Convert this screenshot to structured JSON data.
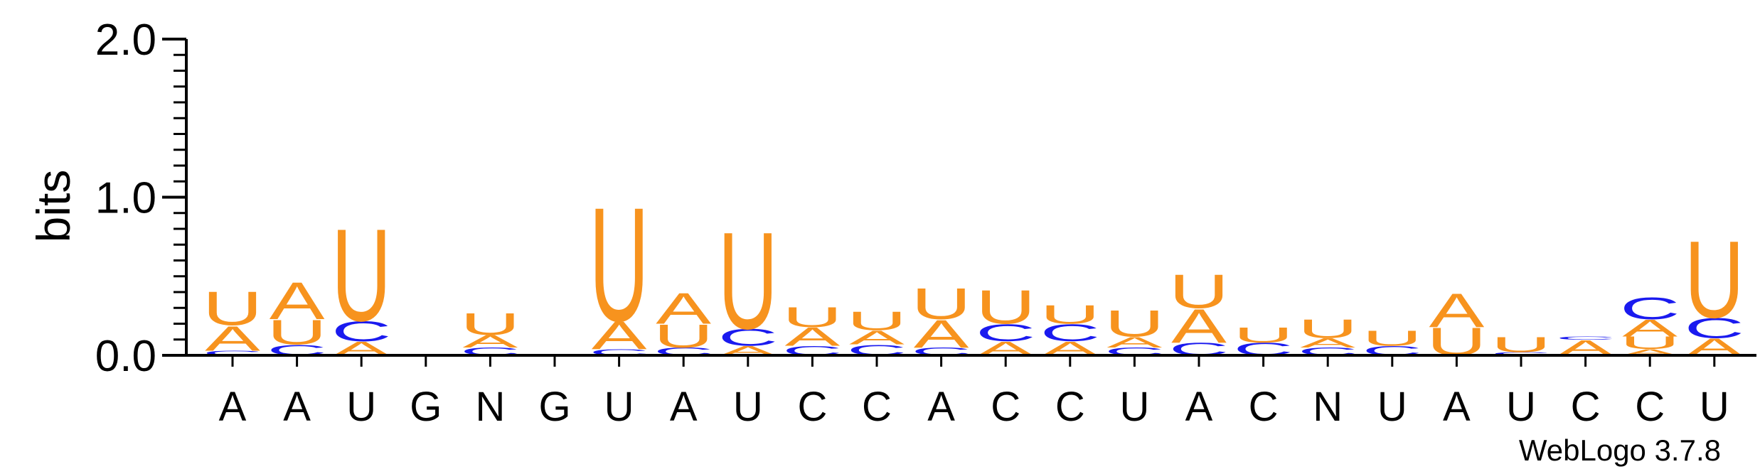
{
  "colors": {
    "A": "#f7931e",
    "U": "#f7931e",
    "C": "#1a1aef",
    "G": "#f7931e"
  },
  "credit": "WebLogo 3.7.8",
  "chart_data": {
    "type": "sequence-logo",
    "ylabel": "bits",
    "ylim": [
      0,
      2.0
    ],
    "yticks": [
      "0.0",
      "1.0",
      "2.0"
    ],
    "positions": [
      {
        "label": "A",
        "stack": [
          [
            "C",
            0.03
          ],
          [
            "A",
            0.16
          ],
          [
            "U",
            0.22
          ]
        ]
      },
      {
        "label": "A",
        "stack": [
          [
            "C",
            0.07
          ],
          [
            "U",
            0.16
          ],
          [
            "A",
            0.24
          ]
        ]
      },
      {
        "label": "U",
        "stack": [
          [
            "A",
            0.09
          ],
          [
            "C",
            0.13
          ],
          [
            "U",
            0.6
          ]
        ]
      },
      {
        "label": "G",
        "stack": []
      },
      {
        "label": "N",
        "stack": [
          [
            "C",
            0.05
          ],
          [
            "A",
            0.08
          ],
          [
            "U",
            0.14
          ]
        ]
      },
      {
        "label": "G",
        "stack": []
      },
      {
        "label": "U",
        "stack": [
          [
            "C",
            0.04
          ],
          [
            "A",
            0.18
          ],
          [
            "U",
            0.74
          ]
        ]
      },
      {
        "label": "A",
        "stack": [
          [
            "C",
            0.05
          ],
          [
            "U",
            0.15
          ],
          [
            "A",
            0.2
          ]
        ]
      },
      {
        "label": "U",
        "stack": [
          [
            "A",
            0.06
          ],
          [
            "C",
            0.11
          ],
          [
            "U",
            0.63
          ]
        ]
      },
      {
        "label": "C",
        "stack": [
          [
            "C",
            0.06
          ],
          [
            "A",
            0.12
          ],
          [
            "U",
            0.13
          ]
        ]
      },
      {
        "label": "C",
        "stack": [
          [
            "C",
            0.07
          ],
          [
            "A",
            0.09
          ],
          [
            "U",
            0.12
          ]
        ]
      },
      {
        "label": "A",
        "stack": [
          [
            "C",
            0.05
          ],
          [
            "A",
            0.18
          ],
          [
            "U",
            0.2
          ]
        ]
      },
      {
        "label": "C",
        "stack": [
          [
            "A",
            0.09
          ],
          [
            "C",
            0.11
          ],
          [
            "U",
            0.22
          ]
        ]
      },
      {
        "label": "C",
        "stack": [
          [
            "A",
            0.09
          ],
          [
            "C",
            0.11
          ],
          [
            "U",
            0.12
          ]
        ]
      },
      {
        "label": "U",
        "stack": [
          [
            "C",
            0.05
          ],
          [
            "A",
            0.07
          ],
          [
            "U",
            0.17
          ]
        ]
      },
      {
        "label": "A",
        "stack": [
          [
            "C",
            0.08
          ],
          [
            "A",
            0.22
          ],
          [
            "U",
            0.22
          ]
        ]
      },
      {
        "label": "C",
        "stack": [
          [
            "C",
            0.08
          ],
          [
            "U",
            0.1
          ]
        ]
      },
      {
        "label": "N",
        "stack": [
          [
            "C",
            0.05
          ],
          [
            "A",
            0.06
          ],
          [
            "U",
            0.12
          ]
        ]
      },
      {
        "label": "U",
        "stack": [
          [
            "C",
            0.06
          ],
          [
            "U",
            0.1
          ]
        ]
      },
      {
        "label": "A",
        "stack": [
          [
            "U",
            0.18
          ],
          [
            "A",
            0.22
          ]
        ]
      },
      {
        "label": "U",
        "stack": [
          [
            "C",
            0.02
          ],
          [
            "U",
            0.1
          ]
        ]
      },
      {
        "label": "C",
        "stack": [
          [
            "A",
            0.1
          ],
          [
            "C",
            0.02
          ]
        ]
      },
      {
        "label": "C",
        "stack": [
          [
            "A",
            0.04
          ],
          [
            "U",
            0.08
          ],
          [
            "A",
            0.11
          ],
          [
            "C",
            0.14
          ]
        ]
      },
      {
        "label": "U",
        "stack": [
          [
            "A",
            0.11
          ],
          [
            "C",
            0.13
          ],
          [
            "U",
            0.5
          ]
        ]
      }
    ]
  }
}
